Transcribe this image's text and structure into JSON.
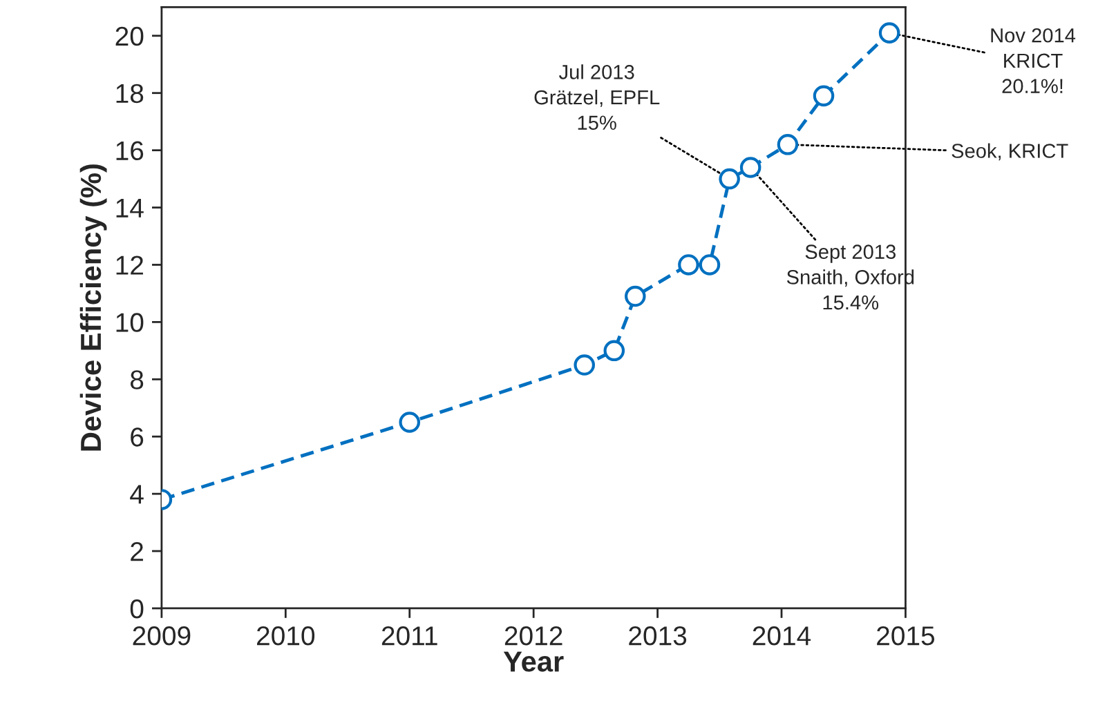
{
  "chart_data": {
    "type": "line",
    "xlabel": "Year",
    "ylabel": "Device Efficiency (%)",
    "xlim": [
      2009,
      2015
    ],
    "xticks": [
      2009,
      2010,
      2011,
      2012,
      2013,
      2014,
      2015
    ],
    "ylim": [
      0,
      21
    ],
    "yticks": [
      0,
      2,
      4,
      6,
      8,
      10,
      12,
      14,
      16,
      18,
      20
    ],
    "grid": false,
    "marker": "circle",
    "line_style": "dashed",
    "series": [
      {
        "color": "#0070c0",
        "x": [
          2009.0,
          2011.0,
          2012.41,
          2012.65,
          2012.82,
          2013.25,
          2013.42,
          2013.58,
          2013.75,
          2014.05,
          2014.34,
          2014.87
        ],
        "values": [
          3.8,
          6.5,
          8.5,
          9.0,
          10.9,
          12.0,
          12.0,
          15.0,
          15.4,
          16.2,
          17.9,
          20.1
        ]
      }
    ],
    "annotations": [
      {
        "text": "Jul 2013\nGrätzel, EPFL\n15%",
        "x": 2013.58,
        "y": 15.0
      },
      {
        "text": "Sept 2013\nSnaith, Oxford\n15.4%",
        "x": 2013.75,
        "y": 15.4
      },
      {
        "text": "Seok, KRICT",
        "x": 2014.05,
        "y": 16.2
      },
      {
        "text": "Nov 2014\nKRICT\n20.1%!",
        "x": 2014.87,
        "y": 20.1
      }
    ]
  }
}
